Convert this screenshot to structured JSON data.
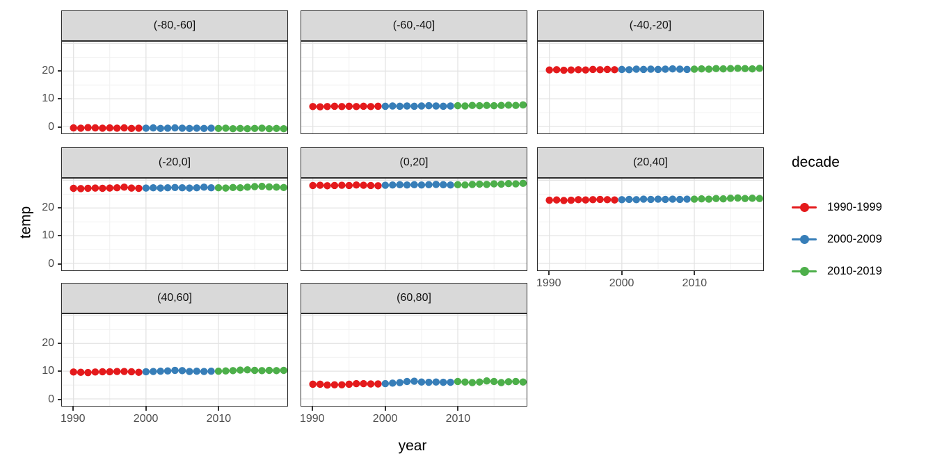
{
  "chart_data": {
    "type": "scatter",
    "title": "",
    "xlabel": "year",
    "ylabel": "temp",
    "legend_title": "decade",
    "legend_position": "right",
    "grid": true,
    "x_range": [
      1988.4,
      2019.5
    ],
    "y_range": [
      -2.5,
      30.6
    ],
    "x_ticks": [
      1990,
      2000,
      2010
    ],
    "y_ticks": [
      0,
      10,
      20
    ],
    "x_grid_minor": [
      1995,
      2005,
      2015
    ],
    "y_grid_major": [
      0,
      10,
      20,
      30
    ],
    "y_grid_minor": [
      5,
      15,
      25
    ],
    "years_start": 1990,
    "years_end": 2019,
    "decades": [
      {
        "label": "1990-1999",
        "color": "#E41A1C",
        "start_year": 1990
      },
      {
        "label": "2000-2009",
        "color": "#377EB8",
        "start_year": 2000
      },
      {
        "label": "2010-2019",
        "color": "#4DAF4A",
        "start_year": 2010
      }
    ],
    "facets": [
      {
        "label": "(-80,-60]",
        "row": 0,
        "col": 0,
        "x_axis": false,
        "y_axis": true,
        "values": {
          "1990-1999": [
            -0.5,
            -0.6,
            -0.4,
            -0.5,
            -0.6,
            -0.5,
            -0.6,
            -0.5,
            -0.7,
            -0.6
          ],
          "2000-2009": [
            -0.6,
            -0.5,
            -0.7,
            -0.6,
            -0.5,
            -0.6,
            -0.7,
            -0.6,
            -0.7,
            -0.6
          ],
          "2010-2019": [
            -0.7,
            -0.6,
            -0.8,
            -0.7,
            -0.8,
            -0.7,
            -0.6,
            -0.8,
            -0.7,
            -0.8
          ]
        }
      },
      {
        "label": "(-60,-40]",
        "row": 0,
        "col": 1,
        "x_axis": false,
        "y_axis": false,
        "values": {
          "1990-1999": [
            7.2,
            7.1,
            7.2,
            7.3,
            7.2,
            7.3,
            7.2,
            7.3,
            7.2,
            7.3
          ],
          "2000-2009": [
            7.3,
            7.4,
            7.3,
            7.4,
            7.3,
            7.4,
            7.5,
            7.4,
            7.3,
            7.4
          ],
          "2010-2019": [
            7.5,
            7.4,
            7.6,
            7.5,
            7.6,
            7.5,
            7.6,
            7.7,
            7.6,
            7.8
          ]
        }
      },
      {
        "label": "(-40,-20]",
        "row": 0,
        "col": 2,
        "x_axis": false,
        "y_axis": false,
        "values": {
          "1990-1999": [
            20.4,
            20.5,
            20.3,
            20.4,
            20.5,
            20.4,
            20.6,
            20.5,
            20.6,
            20.5
          ],
          "2000-2009": [
            20.6,
            20.5,
            20.7,
            20.6,
            20.7,
            20.6,
            20.7,
            20.8,
            20.7,
            20.6
          ],
          "2010-2019": [
            20.7,
            20.8,
            20.7,
            20.9,
            20.8,
            20.9,
            21.0,
            20.9,
            20.8,
            21.0
          ]
        }
      },
      {
        "label": "(-20,0]",
        "row": 1,
        "col": 0,
        "x_axis": false,
        "y_axis": true,
        "values": {
          "1990-1999": [
            27.1,
            27.0,
            27.1,
            27.2,
            27.1,
            27.2,
            27.3,
            27.5,
            27.2,
            27.1
          ],
          "2000-2009": [
            27.2,
            27.3,
            27.2,
            27.3,
            27.4,
            27.3,
            27.2,
            27.3,
            27.5,
            27.3
          ],
          "2010-2019": [
            27.3,
            27.2,
            27.4,
            27.3,
            27.5,
            27.7,
            27.8,
            27.6,
            27.5,
            27.4
          ]
        }
      },
      {
        "label": "(0,20]",
        "row": 1,
        "col": 1,
        "x_axis": false,
        "y_axis": false,
        "values": {
          "1990-1999": [
            28.1,
            28.2,
            28.0,
            28.1,
            28.2,
            28.1,
            28.3,
            28.2,
            28.1,
            28.0
          ],
          "2000-2009": [
            28.2,
            28.3,
            28.4,
            28.3,
            28.4,
            28.3,
            28.4,
            28.5,
            28.4,
            28.3
          ],
          "2010-2019": [
            28.4,
            28.3,
            28.5,
            28.6,
            28.5,
            28.7,
            28.6,
            28.8,
            28.7,
            28.9
          ]
        }
      },
      {
        "label": "(20,40]",
        "row": 1,
        "col": 2,
        "x_axis": true,
        "y_axis": false,
        "values": {
          "1990-1999": [
            22.8,
            22.9,
            22.7,
            22.8,
            23.0,
            22.9,
            23.0,
            23.1,
            23.0,
            22.9
          ],
          "2000-2009": [
            23.0,
            23.1,
            23.0,
            23.2,
            23.1,
            23.2,
            23.1,
            23.2,
            23.1,
            23.2
          ],
          "2010-2019": [
            23.2,
            23.3,
            23.2,
            23.4,
            23.3,
            23.5,
            23.6,
            23.4,
            23.5,
            23.4
          ]
        }
      },
      {
        "label": "(40,60]",
        "row": 2,
        "col": 0,
        "x_axis": true,
        "y_axis": true,
        "values": {
          "1990-1999": [
            9.7,
            9.6,
            9.5,
            9.7,
            9.8,
            9.8,
            9.9,
            9.9,
            9.8,
            9.6
          ],
          "2000-2009": [
            9.8,
            9.9,
            10.0,
            10.1,
            10.3,
            10.2,
            9.9,
            10.0,
            9.9,
            10.0
          ],
          "2010-2019": [
            10.0,
            10.1,
            10.2,
            10.4,
            10.5,
            10.3,
            10.2,
            10.3,
            10.2,
            10.3
          ]
        }
      },
      {
        "label": "(60,80]",
        "row": 2,
        "col": 1,
        "x_axis": true,
        "y_axis": false,
        "values": {
          "1990-1999": [
            5.3,
            5.3,
            5.0,
            5.1,
            5.1,
            5.3,
            5.5,
            5.5,
            5.4,
            5.4
          ],
          "2000-2009": [
            5.5,
            5.7,
            5.9,
            6.3,
            6.4,
            6.1,
            6.0,
            6.1,
            6.0,
            6.0
          ],
          "2010-2019": [
            6.3,
            6.1,
            5.9,
            6.1,
            6.5,
            6.3,
            5.9,
            6.2,
            6.3,
            6.1
          ]
        }
      }
    ],
    "style": {
      "strip_fill": "#d9d9d9",
      "panel_border": "#2d2d2d",
      "grid_major_color": "#e3e3e3",
      "grid_minor_color": "#f1f1f1",
      "tick_label_color": "#4d4d4d"
    }
  },
  "legend": {
    "title": "decade",
    "entries": [
      {
        "label": "1990-1999",
        "color": "#E41A1C"
      },
      {
        "label": "2000-2009",
        "color": "#377EB8"
      },
      {
        "label": "2010-2019",
        "color": "#4DAF4A"
      }
    ]
  }
}
